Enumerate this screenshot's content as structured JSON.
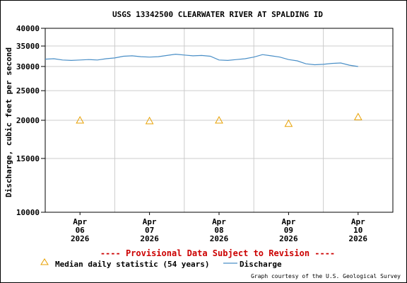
{
  "chart_data": {
    "type": "line",
    "title": "USGS 13342500 CLEARWATER RIVER AT SPALDING ID",
    "ylabel": "Discharge, cubic feet per second",
    "xlabel": "",
    "y_scale": "log",
    "ylim": [
      10000,
      40000
    ],
    "y_ticks": [
      {
        "value": 10000,
        "label": "10000"
      },
      {
        "value": 15000,
        "label": "15000"
      },
      {
        "value": 20000,
        "label": "20000"
      },
      {
        "value": 25000,
        "label": "25000"
      },
      {
        "value": 30000,
        "label": "30000"
      },
      {
        "value": 35000,
        "label": "35000"
      },
      {
        "value": 40000,
        "label": "40000"
      }
    ],
    "xlim": [
      "2026-04-05T12:00",
      "2026-04-10T12:00"
    ],
    "x_ticks": [
      {
        "value": "2026-04-06T00:00",
        "line1": "Apr",
        "line2": "06",
        "line3": "2026"
      },
      {
        "value": "2026-04-07T00:00",
        "line1": "Apr",
        "line2": "07",
        "line3": "2026"
      },
      {
        "value": "2026-04-08T00:00",
        "line1": "Apr",
        "line2": "08",
        "line3": "2026"
      },
      {
        "value": "2026-04-09T00:00",
        "line1": "Apr",
        "line2": "09",
        "line3": "2026"
      },
      {
        "value": "2026-04-10T00:00",
        "line1": "Apr",
        "line2": "10",
        "line3": "2026"
      }
    ],
    "x_gridlines": [
      "2026-04-06T12:00",
      "2026-04-07T12:00",
      "2026-04-08T12:00",
      "2026-04-09T12:00"
    ],
    "grid": true,
    "series": [
      {
        "name": "Discharge",
        "kind": "line",
        "color": "#4a8fc7",
        "points": [
          {
            "x": "2026-04-05T12:00",
            "y": 31700
          },
          {
            "x": "2026-04-05T15:00",
            "y": 31800
          },
          {
            "x": "2026-04-05T18:00",
            "y": 31500
          },
          {
            "x": "2026-04-05T21:00",
            "y": 31400
          },
          {
            "x": "2026-04-06T00:00",
            "y": 31500
          },
          {
            "x": "2026-04-06T03:00",
            "y": 31600
          },
          {
            "x": "2026-04-06T06:00",
            "y": 31500
          },
          {
            "x": "2026-04-06T09:00",
            "y": 31800
          },
          {
            "x": "2026-04-06T12:00",
            "y": 32000
          },
          {
            "x": "2026-04-06T15:00",
            "y": 32400
          },
          {
            "x": "2026-04-06T18:00",
            "y": 32500
          },
          {
            "x": "2026-04-06T21:00",
            "y": 32300
          },
          {
            "x": "2026-04-07T00:00",
            "y": 32200
          },
          {
            "x": "2026-04-07T03:00",
            "y": 32300
          },
          {
            "x": "2026-04-07T06:00",
            "y": 32600
          },
          {
            "x": "2026-04-07T09:00",
            "y": 32900
          },
          {
            "x": "2026-04-07T12:00",
            "y": 32700
          },
          {
            "x": "2026-04-07T15:00",
            "y": 32500
          },
          {
            "x": "2026-04-07T18:00",
            "y": 32600
          },
          {
            "x": "2026-04-07T21:00",
            "y": 32400
          },
          {
            "x": "2026-04-08T00:00",
            "y": 31500
          },
          {
            "x": "2026-04-08T03:00",
            "y": 31400
          },
          {
            "x": "2026-04-08T06:00",
            "y": 31600
          },
          {
            "x": "2026-04-08T09:00",
            "y": 31800
          },
          {
            "x": "2026-04-08T12:00",
            "y": 32200
          },
          {
            "x": "2026-04-08T15:00",
            "y": 32800
          },
          {
            "x": "2026-04-08T18:00",
            "y": 32500
          },
          {
            "x": "2026-04-08T21:00",
            "y": 32200
          },
          {
            "x": "2026-04-09T00:00",
            "y": 31600
          },
          {
            "x": "2026-04-09T03:00",
            "y": 31300
          },
          {
            "x": "2026-04-09T06:00",
            "y": 30600
          },
          {
            "x": "2026-04-09T09:00",
            "y": 30400
          },
          {
            "x": "2026-04-09T12:00",
            "y": 30500
          },
          {
            "x": "2026-04-09T15:00",
            "y": 30700
          },
          {
            "x": "2026-04-09T18:00",
            "y": 30800
          },
          {
            "x": "2026-04-09T21:00",
            "y": 30300
          },
          {
            "x": "2026-04-10T00:00",
            "y": 30000
          }
        ]
      },
      {
        "name": "Median daily statistic (54 years)",
        "kind": "marker",
        "marker": "triangle",
        "color": "#e8a000",
        "points": [
          {
            "x": "2026-04-06T00:00",
            "y": 20000
          },
          {
            "x": "2026-04-07T00:00",
            "y": 19900
          },
          {
            "x": "2026-04-08T00:00",
            "y": 20000
          },
          {
            "x": "2026-04-09T00:00",
            "y": 19500
          },
          {
            "x": "2026-04-10T00:00",
            "y": 20500
          }
        ]
      }
    ],
    "annotation": "---- Provisional Data Subject to Revision ----",
    "annotation_color": "#cc0000",
    "legend": {
      "placement": "bottom-left",
      "median_label": "Median daily statistic (54 years)",
      "discharge_label": "Discharge"
    },
    "credit": "Graph courtesy of the U.S. Geological Survey"
  }
}
